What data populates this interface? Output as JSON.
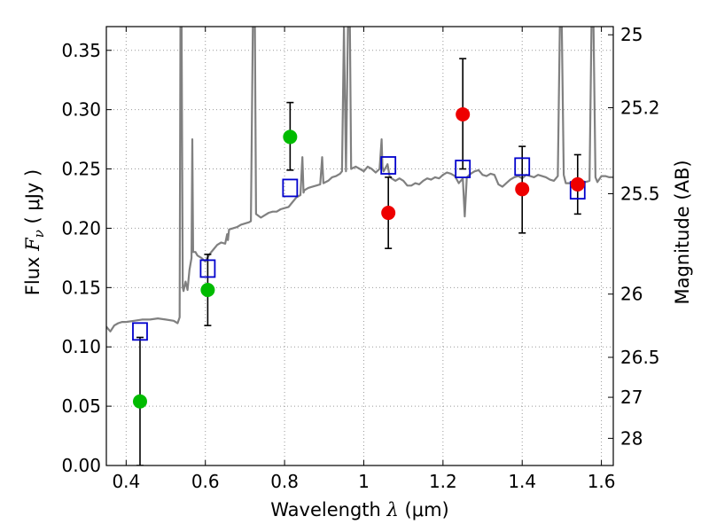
{
  "chart_data": {
    "type": "scatter",
    "xlabel_prefix": "Wavelength",
    "xlabel_symbol": "λ",
    "xlabel_unit": "(μm)",
    "ylabel_prefix": "Flux",
    "ylabel_symbol": "F",
    "ylabel_subscript": "ν",
    "ylabel_unit": "( μJy )",
    "y2label": "Magnitude (AB)",
    "xlim": [
      0.35,
      1.63
    ],
    "ylim": [
      0.0,
      0.37
    ],
    "grid": true,
    "xticks": [
      0.4,
      0.6,
      0.8,
      1.0,
      1.2,
      1.4,
      1.6
    ],
    "xtick_labels": [
      "0.4",
      "0.6",
      "0.8",
      "1",
      "1.2",
      "1.4",
      "1.6"
    ],
    "yticks": [
      0.0,
      0.05,
      0.1,
      0.15,
      0.2,
      0.25,
      0.3,
      0.35
    ],
    "ytick_labels": [
      "0.00",
      "0.05",
      "0.10",
      "0.15",
      "0.20",
      "0.25",
      "0.30",
      "0.35"
    ],
    "y2ticks": [
      {
        "flux": 0.3631,
        "label": "25"
      },
      {
        "flux": 0.3016,
        "label": "25.2"
      },
      {
        "flux": 0.2291,
        "label": "25.5"
      },
      {
        "flux": 0.1445,
        "label": "26"
      },
      {
        "flux": 0.0912,
        "label": "26.5"
      },
      {
        "flux": 0.0575,
        "label": "27"
      },
      {
        "flux": 0.0229,
        "label": "28"
      }
    ],
    "colors": {
      "template": "#808080",
      "model": "#0000cc",
      "green": "#00bb00",
      "red": "#ee0000",
      "errorbar": "#000000",
      "grid": "#999999"
    },
    "template_spectrum": [
      [
        0.35,
        0.117
      ],
      [
        0.36,
        0.113
      ],
      [
        0.37,
        0.118
      ],
      [
        0.38,
        0.12
      ],
      [
        0.39,
        0.121
      ],
      [
        0.4,
        0.121
      ],
      [
        0.42,
        0.122
      ],
      [
        0.44,
        0.123
      ],
      [
        0.46,
        0.123
      ],
      [
        0.48,
        0.124
      ],
      [
        0.5,
        0.123
      ],
      [
        0.52,
        0.122
      ],
      [
        0.53,
        0.12
      ],
      [
        0.535,
        0.125
      ],
      [
        0.537,
        0.37
      ],
      [
        0.54,
        0.37
      ],
      [
        0.543,
        0.15
      ],
      [
        0.545,
        0.147
      ],
      [
        0.55,
        0.155
      ],
      [
        0.555,
        0.148
      ],
      [
        0.56,
        0.165
      ],
      [
        0.565,
        0.175
      ],
      [
        0.567,
        0.275
      ],
      [
        0.569,
        0.18
      ],
      [
        0.575,
        0.18
      ],
      [
        0.58,
        0.177
      ],
      [
        0.59,
        0.175
      ],
      [
        0.6,
        0.172
      ],
      [
        0.61,
        0.178
      ],
      [
        0.62,
        0.182
      ],
      [
        0.63,
        0.186
      ],
      [
        0.64,
        0.188
      ],
      [
        0.65,
        0.187
      ],
      [
        0.655,
        0.195
      ],
      [
        0.657,
        0.19
      ],
      [
        0.66,
        0.199
      ],
      [
        0.67,
        0.2
      ],
      [
        0.68,
        0.201
      ],
      [
        0.69,
        0.203
      ],
      [
        0.7,
        0.204
      ],
      [
        0.71,
        0.205
      ],
      [
        0.715,
        0.206
      ],
      [
        0.72,
        0.37
      ],
      [
        0.725,
        0.37
      ],
      [
        0.728,
        0.212
      ],
      [
        0.74,
        0.209
      ],
      [
        0.75,
        0.211
      ],
      [
        0.76,
        0.213
      ],
      [
        0.77,
        0.214
      ],
      [
        0.78,
        0.214
      ],
      [
        0.79,
        0.216
      ],
      [
        0.8,
        0.217
      ],
      [
        0.81,
        0.218
      ],
      [
        0.82,
        0.222
      ],
      [
        0.83,
        0.226
      ],
      [
        0.84,
        0.228
      ],
      [
        0.845,
        0.26
      ],
      [
        0.848,
        0.23
      ],
      [
        0.85,
        0.232
      ],
      [
        0.86,
        0.234
      ],
      [
        0.87,
        0.235
      ],
      [
        0.88,
        0.236
      ],
      [
        0.89,
        0.237
      ],
      [
        0.895,
        0.26
      ],
      [
        0.898,
        0.238
      ],
      [
        0.91,
        0.24
      ],
      [
        0.92,
        0.243
      ],
      [
        0.93,
        0.244
      ],
      [
        0.94,
        0.246
      ],
      [
        0.945,
        0.248
      ],
      [
        0.95,
        0.37
      ],
      [
        0.955,
        0.248
      ],
      [
        0.96,
        0.37
      ],
      [
        0.965,
        0.37
      ],
      [
        0.968,
        0.25
      ],
      [
        0.98,
        0.252
      ],
      [
        0.99,
        0.25
      ],
      [
        1.0,
        0.248
      ],
      [
        1.01,
        0.252
      ],
      [
        1.02,
        0.25
      ],
      [
        1.03,
        0.247
      ],
      [
        1.04,
        0.25
      ],
      [
        1.045,
        0.275
      ],
      [
        1.047,
        0.252
      ],
      [
        1.05,
        0.248
      ],
      [
        1.06,
        0.254
      ],
      [
        1.065,
        0.244
      ],
      [
        1.07,
        0.242
      ],
      [
        1.08,
        0.24
      ],
      [
        1.09,
        0.242
      ],
      [
        1.1,
        0.24
      ],
      [
        1.11,
        0.236
      ],
      [
        1.12,
        0.236
      ],
      [
        1.13,
        0.238
      ],
      [
        1.14,
        0.237
      ],
      [
        1.15,
        0.24
      ],
      [
        1.16,
        0.242
      ],
      [
        1.17,
        0.241
      ],
      [
        1.18,
        0.243
      ],
      [
        1.19,
        0.242
      ],
      [
        1.2,
        0.245
      ],
      [
        1.21,
        0.247
      ],
      [
        1.22,
        0.246
      ],
      [
        1.23,
        0.244
      ],
      [
        1.24,
        0.238
      ],
      [
        1.25,
        0.242
      ],
      [
        1.255,
        0.21
      ],
      [
        1.26,
        0.243
      ],
      [
        1.27,
        0.246
      ],
      [
        1.28,
        0.248
      ],
      [
        1.29,
        0.249
      ],
      [
        1.3,
        0.245
      ],
      [
        1.31,
        0.244
      ],
      [
        1.32,
        0.246
      ],
      [
        1.33,
        0.245
      ],
      [
        1.34,
        0.237
      ],
      [
        1.35,
        0.235
      ],
      [
        1.36,
        0.238
      ],
      [
        1.37,
        0.241
      ],
      [
        1.38,
        0.243
      ],
      [
        1.39,
        0.244
      ],
      [
        1.4,
        0.242
      ],
      [
        1.41,
        0.245
      ],
      [
        1.42,
        0.244
      ],
      [
        1.43,
        0.243
      ],
      [
        1.44,
        0.245
      ],
      [
        1.45,
        0.244
      ],
      [
        1.46,
        0.243
      ],
      [
        1.47,
        0.241
      ],
      [
        1.48,
        0.24
      ],
      [
        1.49,
        0.244
      ],
      [
        1.495,
        0.37
      ],
      [
        1.5,
        0.37
      ],
      [
        1.505,
        0.245
      ],
      [
        1.51,
        0.238
      ],
      [
        1.52,
        0.238
      ],
      [
        1.53,
        0.239
      ],
      [
        1.54,
        0.24
      ],
      [
        1.55,
        0.24
      ],
      [
        1.56,
        0.239
      ],
      [
        1.57,
        0.24
      ],
      [
        1.575,
        0.37
      ],
      [
        1.58,
        0.37
      ],
      [
        1.585,
        0.243
      ],
      [
        1.59,
        0.239
      ],
      [
        1.6,
        0.244
      ],
      [
        1.61,
        0.244
      ],
      [
        1.62,
        0.243
      ],
      [
        1.63,
        0.243
      ]
    ],
    "model_photometry": [
      {
        "x": 0.435,
        "y": 0.113
      },
      {
        "x": 0.606,
        "y": 0.166
      },
      {
        "x": 0.814,
        "y": 0.234
      },
      {
        "x": 1.062,
        "y": 0.253
      },
      {
        "x": 1.25,
        "y": 0.25
      },
      {
        "x": 1.4,
        "y": 0.252
      },
      {
        "x": 1.54,
        "y": 0.232
      }
    ],
    "observed_green": [
      {
        "x": 0.435,
        "y": 0.054,
        "err_low": 0.054,
        "err_high": 0.054
      },
      {
        "x": 0.606,
        "y": 0.148,
        "err_low": 0.03,
        "err_high": 0.03
      },
      {
        "x": 0.814,
        "y": 0.277,
        "err_low": 0.028,
        "err_high": 0.029
      }
    ],
    "observed_red": [
      {
        "x": 1.062,
        "y": 0.213,
        "err_low": 0.03,
        "err_high": 0.03
      },
      {
        "x": 1.25,
        "y": 0.296,
        "err_low": 0.046,
        "err_high": 0.047
      },
      {
        "x": 1.4,
        "y": 0.233,
        "err_low": 0.037,
        "err_high": 0.036
      },
      {
        "x": 1.54,
        "y": 0.237,
        "err_low": 0.025,
        "err_high": 0.025
      }
    ]
  }
}
